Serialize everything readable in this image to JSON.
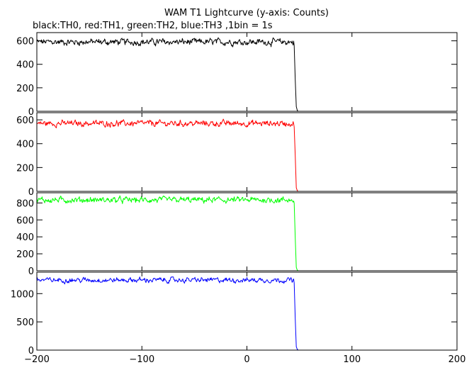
{
  "title": "WAM T1 Lightcurve (y-axis: Counts)",
  "subtitle": "black:TH0, red:TH1, green:TH2, blue:TH3 ,1bin = 1s",
  "colors": {
    "TH0": "#000000",
    "TH1": "#ff0000",
    "TH2": "#00ff00",
    "TH3": "#0000ff"
  },
  "chart_data": {
    "type": "line",
    "title": "WAM T1 Lightcurve (y-axis: Counts)",
    "subtitle": "black:TH0, red:TH1, green:TH2, blue:TH3 ,1bin = 1s",
    "xlabel": "",
    "ylabel": "",
    "xlim": [
      -200,
      200
    ],
    "x_ticks": [
      -200,
      -100,
      0,
      100,
      200
    ],
    "x_tick_labels": [
      "−200",
      "−100",
      "0",
      "100",
      "200"
    ],
    "grid": false,
    "panels": [
      {
        "name": "TH0",
        "color": "#000000",
        "ylim": [
          0,
          670
        ],
        "y_ticks": [
          0,
          200,
          400,
          600
        ],
        "baseline": 590,
        "noise": 22,
        "drop_x": [
          45,
          46,
          47,
          48
        ],
        "drop_y": [
          560,
          270,
          40,
          5
        ]
      },
      {
        "name": "TH1",
        "color": "#ff0000",
        "ylim": [
          0,
          660
        ],
        "y_ticks": [
          0,
          200,
          400,
          600
        ],
        "baseline": 570,
        "noise": 20,
        "drop_x": [
          45,
          46,
          47,
          48
        ],
        "drop_y": [
          540,
          300,
          30,
          5
        ]
      },
      {
        "name": "TH2",
        "color": "#00ff00",
        "ylim": [
          0,
          920
        ],
        "y_ticks": [
          0,
          200,
          400,
          600,
          800
        ],
        "baseline": 835,
        "noise": 28,
        "drop_x": [
          45,
          46,
          47,
          48
        ],
        "drop_y": [
          800,
          390,
          40,
          5
        ]
      },
      {
        "name": "TH3",
        "color": "#0000ff",
        "ylim": [
          0,
          1380
        ],
        "y_ticks": [
          0,
          500,
          1000
        ],
        "baseline": 1240,
        "noise": 35,
        "drop_x": [
          45,
          46,
          47,
          48
        ],
        "drop_y": [
          1190,
          560,
          60,
          10
        ]
      }
    ]
  }
}
